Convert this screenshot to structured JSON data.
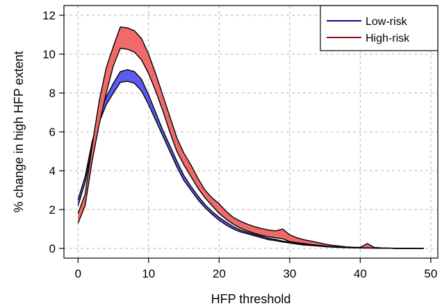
{
  "chart_data": {
    "type": "area",
    "title": "",
    "xlabel": "HFP threshold",
    "ylabel": "% change in high HFP extent",
    "xlim": [
      -2,
      51
    ],
    "ylim": [
      -0.5,
      12.5
    ],
    "x_ticks": [
      0,
      10,
      20,
      30,
      40,
      50
    ],
    "y_ticks": [
      0,
      2,
      4,
      6,
      8,
      10,
      12
    ],
    "grid": true,
    "legend_position": "top-right",
    "series": [
      {
        "name": "Low-risk",
        "color": "#0a0a8c",
        "fill": "#5b5bf0",
        "x": [
          0,
          1,
          2,
          3,
          4,
          5,
          6,
          7,
          8,
          9,
          10,
          11,
          12,
          13,
          14,
          15,
          16,
          17,
          18,
          19,
          20,
          21,
          22,
          23,
          24,
          25,
          26,
          27,
          28,
          29,
          30,
          31,
          32,
          33,
          34,
          35,
          36,
          37,
          38,
          39,
          40,
          41,
          42,
          43,
          44,
          45,
          46,
          47,
          48,
          49
        ],
        "lower": [
          2.2,
          3.4,
          5.2,
          6.5,
          7.4,
          8.0,
          8.55,
          8.6,
          8.5,
          8.1,
          7.4,
          6.6,
          5.8,
          5.0,
          4.2,
          3.5,
          3.0,
          2.5,
          2.1,
          1.75,
          1.45,
          1.2,
          1.0,
          0.85,
          0.75,
          0.65,
          0.55,
          0.45,
          0.4,
          0.33,
          0.28,
          0.22,
          0.18,
          0.15,
          0.12,
          0.09,
          0.07,
          0.05,
          0.04,
          0.03,
          0.02,
          0.02,
          0.01,
          0.01,
          0.01,
          0.0,
          0.0,
          0.0,
          0.0,
          0.0
        ],
        "upper": [
          2.5,
          3.7,
          5.5,
          6.9,
          7.8,
          8.5,
          9.1,
          9.2,
          9.1,
          8.7,
          7.9,
          7.0,
          6.1,
          5.3,
          4.5,
          3.75,
          3.2,
          2.7,
          2.25,
          1.9,
          1.6,
          1.35,
          1.12,
          0.95,
          0.83,
          0.72,
          0.62,
          0.52,
          0.46,
          0.38,
          0.32,
          0.26,
          0.21,
          0.17,
          0.14,
          0.11,
          0.08,
          0.06,
          0.05,
          0.04,
          0.03,
          0.03,
          0.02,
          0.01,
          0.01,
          0.0,
          0.0,
          0.0,
          0.0,
          0.0
        ]
      },
      {
        "name": "High-risk",
        "color": "#8b1010",
        "fill": "#f06a6a",
        "x": [
          0,
          1,
          2,
          3,
          4,
          5,
          6,
          7,
          8,
          9,
          10,
          11,
          12,
          13,
          14,
          15,
          16,
          17,
          18,
          19,
          20,
          21,
          22,
          23,
          24,
          25,
          26,
          27,
          28,
          29,
          30,
          31,
          32,
          33,
          34,
          35,
          36,
          37,
          38,
          39,
          40,
          41,
          42,
          43,
          44,
          45,
          46,
          47,
          48,
          49
        ],
        "lower": [
          1.3,
          2.2,
          4.5,
          6.4,
          8.0,
          9.4,
          10.3,
          10.25,
          10.1,
          9.7,
          9.0,
          8.1,
          7.1,
          6.0,
          5.0,
          4.3,
          3.7,
          3.1,
          2.6,
          2.2,
          1.8,
          1.5,
          1.25,
          1.05,
          0.9,
          0.78,
          0.68,
          0.6,
          0.55,
          0.5,
          0.35,
          0.3,
          0.25,
          0.2,
          0.16,
          0.12,
          0.09,
          0.07,
          0.05,
          0.04,
          0.03,
          0.03,
          0.02,
          0.01,
          0.01,
          0.0,
          0.0,
          0.0,
          0.0,
          0.0
        ],
        "upper": [
          1.8,
          2.8,
          5.3,
          7.6,
          9.3,
          10.4,
          11.4,
          11.35,
          11.2,
          10.8,
          10.0,
          9.0,
          7.9,
          6.8,
          5.7,
          4.9,
          4.3,
          3.6,
          3.0,
          2.6,
          2.3,
          1.9,
          1.6,
          1.4,
          1.25,
          1.12,
          1.02,
          0.95,
          0.9,
          1.0,
          0.7,
          0.55,
          0.45,
          0.38,
          0.3,
          0.22,
          0.16,
          0.12,
          0.08,
          0.06,
          0.05,
          0.25,
          0.05,
          0.03,
          0.02,
          0.01,
          0.0,
          0.0,
          0.0,
          0.0
        ]
      }
    ]
  }
}
